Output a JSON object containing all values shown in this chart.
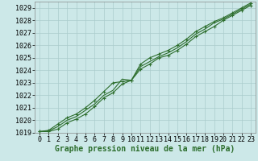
{
  "background_color": "#cce8e8",
  "grid_color": "#aacccc",
  "line_color": "#2d6e2d",
  "marker_color": "#2d6e2d",
  "xlabel": "Graphe pression niveau de la mer (hPa)",
  "xlabel_fontsize": 7.0,
  "ylim": [
    1019.0,
    1029.5
  ],
  "xlim": [
    -0.5,
    23.5
  ],
  "yticks": [
    1019,
    1020,
    1021,
    1022,
    1023,
    1024,
    1025,
    1026,
    1027,
    1028,
    1029
  ],
  "xticks": [
    0,
    1,
    2,
    3,
    4,
    5,
    6,
    7,
    8,
    9,
    10,
    11,
    12,
    13,
    14,
    15,
    16,
    17,
    18,
    19,
    20,
    21,
    22,
    23
  ],
  "series": [
    [
      1019.1,
      1019.1,
      1019.3,
      1019.8,
      1020.1,
      1020.5,
      1021.1,
      1021.8,
      1022.2,
      1022.9,
      1023.2,
      1024.1,
      1024.5,
      1025.0,
      1025.2,
      1025.6,
      1026.1,
      1026.7,
      1027.1,
      1027.5,
      1028.0,
      1028.4,
      1028.8,
      1029.2
    ],
    [
      1019.1,
      1019.15,
      1019.5,
      1020.0,
      1020.3,
      1020.8,
      1021.3,
      1022.0,
      1022.4,
      1023.3,
      1023.2,
      1024.3,
      1024.7,
      1025.1,
      1025.4,
      1025.8,
      1026.3,
      1026.9,
      1027.3,
      1027.8,
      1028.1,
      1028.5,
      1028.9,
      1029.3
    ],
    [
      1019.1,
      1019.2,
      1019.7,
      1020.2,
      1020.5,
      1021.0,
      1021.6,
      1022.3,
      1023.0,
      1023.1,
      1023.2,
      1024.5,
      1025.0,
      1025.3,
      1025.6,
      1026.0,
      1026.5,
      1027.1,
      1027.5,
      1027.9,
      1028.2,
      1028.6,
      1029.0,
      1029.4
    ]
  ],
  "marker_series": [
    0,
    2
  ],
  "tick_fontsize": 6.0
}
